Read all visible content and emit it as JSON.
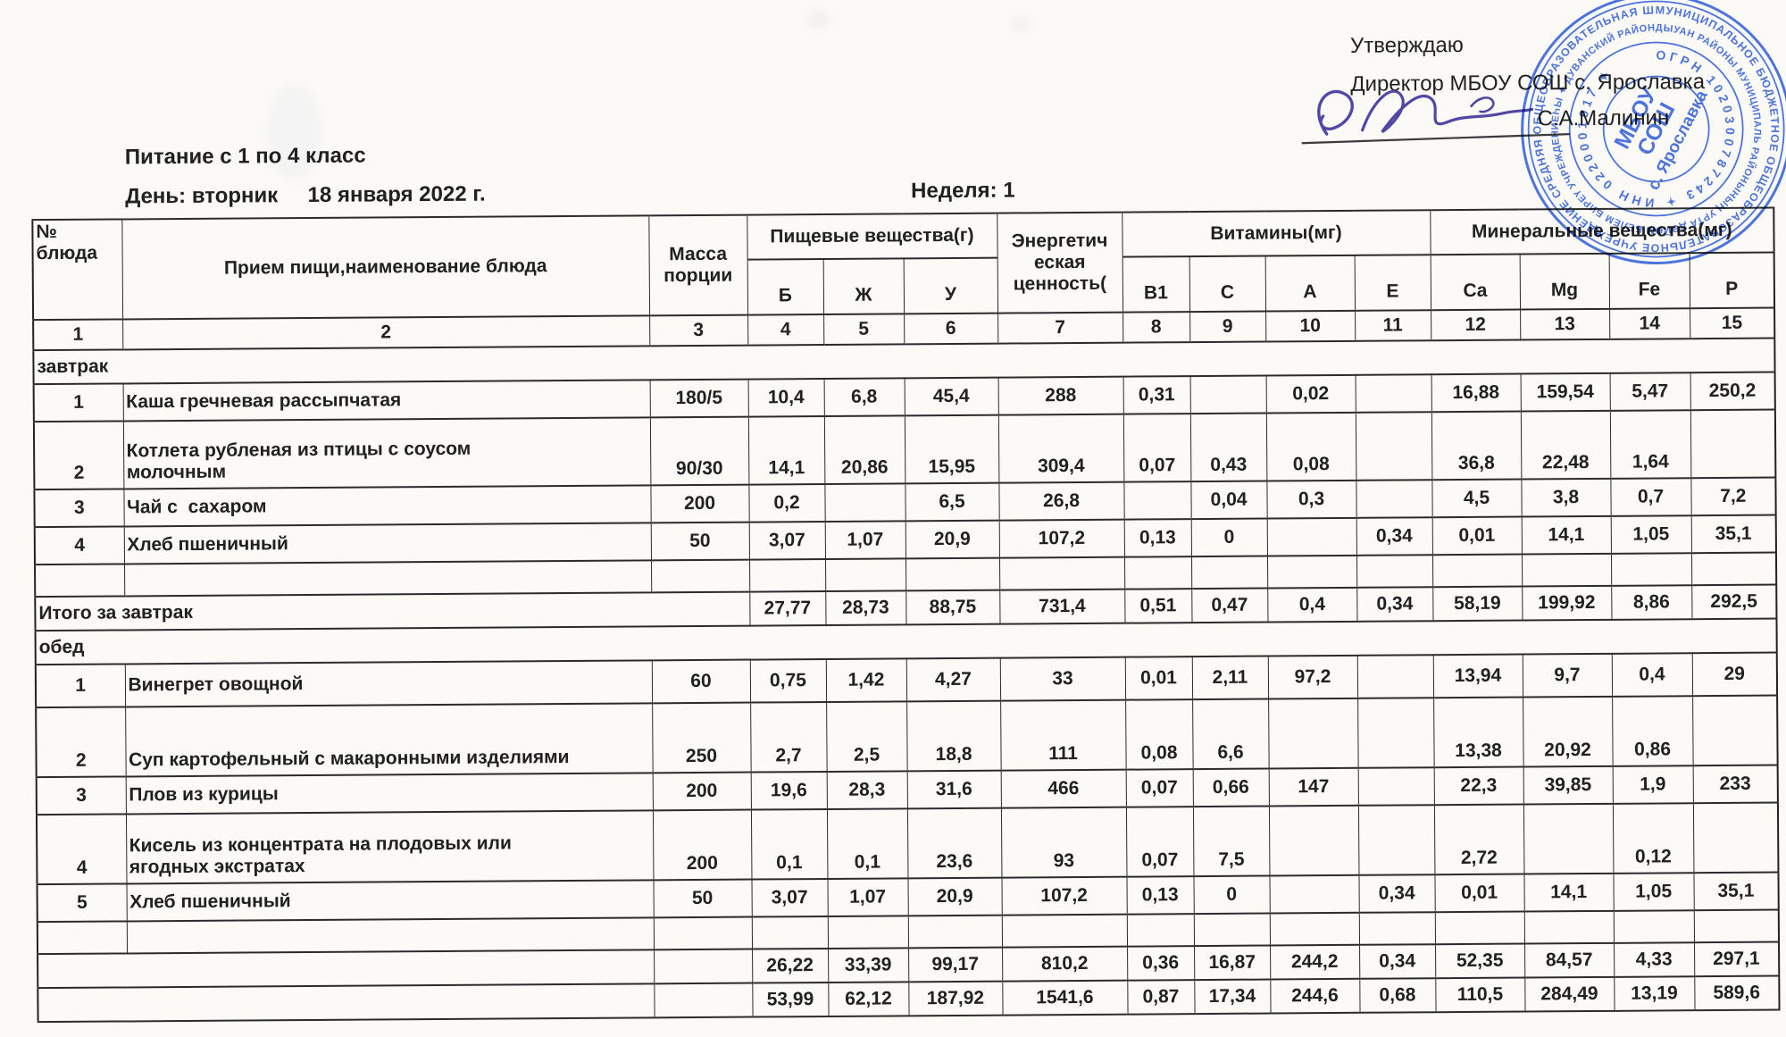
{
  "document": {
    "title": "Питание с 1 по 4 класс",
    "day_line": "День: вторник     18 января 2022 г.",
    "week": "Неделя: 1",
    "approval": {
      "approve": "Утверждаю",
      "director": "Директор МБОУ СОШ с. Ярославка",
      "signer": "С.А.Малинин"
    }
  },
  "stamp": {
    "color": "#2d5bd7",
    "outer_ring": "МУНИЦИПАЛЬНОЕ БЮДЖЕТНОЕ ОБЩЕОБРАЗОВАТЕЛЬНОЕ УЧРЕЖДЕНИЕ СРЕДНЯЯ ОБЩЕОБРАЗОВАТЕЛЬНАЯ ШКОЛА С. ЯРОСЛАВКА ✦ ",
    "middle_ring": "ДЫУАН РАЙОНЫ МУНИЦИПАЛЬ РАЙОНЫНЫҢ УРТА ДӨЙӨМ БЕЛЕМ БИРЕҮ УЧРЕЖДЕНИЕҺЫ ✦ ДУВАНСКИЙ РАЙОН РЕСП. БАШКОРТОСТАН ✦ ",
    "inner_ring": "ОГРН 1020300787243 ✦ ИНН 0220001917 ✦ ",
    "center_line1": "МБОУ",
    "center_line2": "СОШ",
    "center_line3": "с. Ярославка"
  },
  "table": {
    "headers": {
      "dish_no": "№\nблюда",
      "meal": "Прием пищи,наименование блюда",
      "mass": "Масса порции",
      "nutrients_group": "Пищевые вещества(г)",
      "nutrients": [
        "Б",
        "Ж",
        "У"
      ],
      "energy": "Энергетич еская ценность(",
      "vitamins_group": "Витамины(мг)",
      "vitamins": [
        "В1",
        "С",
        "А",
        "Е"
      ],
      "minerals_group": "Минеральные вещества(мг)",
      "minerals": [
        "Ca",
        "Mg",
        "Fe",
        "P"
      ]
    },
    "rows": [
      {
        "type": "colnums",
        "values": [
          "1",
          "2",
          "3",
          "4",
          "5",
          "6",
          "7",
          "8",
          "9",
          "10",
          "11",
          "12",
          "13",
          "14",
          "15"
        ]
      },
      {
        "type": "section",
        "label": "завтрак"
      },
      {
        "type": "dish",
        "num": "1",
        "name": "Каша гречневая рассыпчатая",
        "mass": "180/5",
        "values": [
          "10,4",
          "6,8",
          "45,4",
          "288",
          "0,31",
          "",
          "0,02",
          "",
          "16,88",
          "159,54",
          "5,47",
          "250,2"
        ]
      },
      {
        "type": "dish",
        "num": "2",
        "name": "Котлета рубленая из птицы с соусом\nмолочным",
        "mass": "90/30",
        "values": [
          "14,1",
          "20,86",
          "15,95",
          "309,4",
          "0,07",
          "0,43",
          "0,08",
          "",
          "36,8",
          "22,48",
          "1,64",
          ""
        ]
      },
      {
        "type": "dish",
        "num": "3",
        "name": "Чай с  сахаром",
        "mass": "200",
        "values": [
          "0,2",
          "",
          "6,5",
          "26,8",
          "",
          "0,04",
          "0,3",
          "",
          "4,5",
          "3,8",
          "0,7",
          "7,2"
        ]
      },
      {
        "type": "dish",
        "num": "4",
        "name": "Хлеб пшеничный",
        "mass": "50",
        "values": [
          "3,07",
          "1,07",
          "20,9",
          "107,2",
          "0,13",
          "0",
          "",
          "0,34",
          "0,01",
          "14,1",
          "1,05",
          "35,1"
        ]
      },
      {
        "type": "empty"
      },
      {
        "type": "total",
        "label": "Итого за завтрак",
        "span": 3,
        "values": [
          "27,77",
          "28,73",
          "88,75",
          "731,4",
          "0,51",
          "0,47",
          "0,4",
          "0,34",
          "58,19",
          "199,92",
          "8,86",
          "292,5"
        ]
      },
      {
        "type": "section",
        "label": "обед"
      },
      {
        "type": "dish",
        "num": "1",
        "name": "Винегрет овощной",
        "mass": "60",
        "values": [
          "0,75",
          "1,42",
          "4,27",
          "33",
          "0,01",
          "2,11",
          "97,2",
          "",
          "13,94",
          "9,7",
          "0,4",
          "29"
        ]
      },
      {
        "type": "dish",
        "num": "2",
        "name": "Суп картофельный с макаронными изделиями",
        "mass": "250",
        "values": [
          "2,7",
          "2,5",
          "18,8",
          "111",
          "0,08",
          "6,6",
          "",
          "",
          "13,38",
          "20,92",
          "0,86",
          ""
        ]
      },
      {
        "type": "dish",
        "num": "3",
        "name": "Плов из курицы",
        "mass": "200",
        "values": [
          "19,6",
          "28,3",
          "31,6",
          "466",
          "0,07",
          "0,66",
          "147",
          "",
          "22,3",
          "39,85",
          "1,9",
          "233"
        ]
      },
      {
        "type": "dish",
        "num": "4",
        "name": "Кисель из концентрата на плодовых или\nягодных экстратах",
        "mass": "200",
        "values": [
          "0,1",
          "0,1",
          "23,6",
          "93",
          "0,07",
          "7,5",
          "",
          "",
          "2,72",
          "",
          "0,12",
          ""
        ]
      },
      {
        "type": "dish",
        "num": "5",
        "name": "Хлеб пшеничный",
        "mass": "50",
        "values": [
          "3,07",
          "1,07",
          "20,9",
          "107,2",
          "0,13",
          "0",
          "",
          "0,34",
          "0,01",
          "14,1",
          "1,05",
          "35,1"
        ]
      },
      {
        "type": "empty"
      },
      {
        "type": "total",
        "label": "",
        "span": 2,
        "values": [
          "26,22",
          "33,39",
          "99,17",
          "810,2",
          "0,36",
          "16,87",
          "244,2",
          "0,34",
          "52,35",
          "84,57",
          "4,33",
          "297,1"
        ]
      },
      {
        "type": "total",
        "label": "",
        "span": 2,
        "values": [
          "53,99",
          "62,12",
          "187,92",
          "1541,6",
          "0,87",
          "17,34",
          "244,6",
          "0,68",
          "110,5",
          "284,49",
          "13,19",
          "589,6"
        ]
      }
    ]
  }
}
